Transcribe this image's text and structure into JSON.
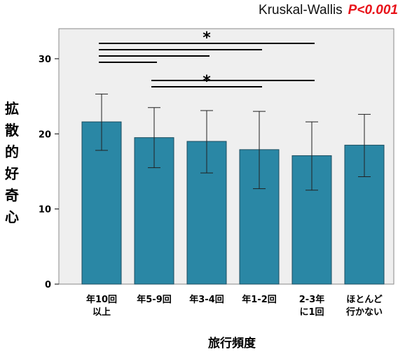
{
  "chart_data": {
    "type": "bar",
    "title": "Kruskal-Wallis",
    "p_value_label": "P<0.001",
    "xlabel": "旅行頻度",
    "ylabel": "拡散的好奇心",
    "categories": [
      [
        "年10回",
        "以上"
      ],
      [
        "年5-9回"
      ],
      [
        "年3-4回"
      ],
      [
        "年1-2回"
      ],
      [
        "2-3年",
        "に1回"
      ],
      [
        "ほとんど",
        "行かない"
      ]
    ],
    "values": [
      21.6,
      19.5,
      19.0,
      17.9,
      17.1,
      18.5
    ],
    "error_upper": [
      25.3,
      23.5,
      23.1,
      23.0,
      21.6,
      22.6
    ],
    "error_lower": [
      17.8,
      15.5,
      14.8,
      12.7,
      12.5,
      14.3
    ],
    "ylim": [
      0,
      34
    ],
    "yticks": [
      0,
      10,
      20,
      30
    ],
    "grid": false,
    "colors": {
      "bar": "#2a87a5",
      "bar_edge": "#1c4e60",
      "plot_bg": "#efefef",
      "p_value": "#e8131a"
    },
    "significance": [
      {
        "from": 0,
        "to": 4,
        "label": "*"
      },
      {
        "from": 0,
        "to": 3,
        "label": ""
      },
      {
        "from": 0,
        "to": 2,
        "label": ""
      },
      {
        "from": 0,
        "to": 1,
        "label": ""
      },
      {
        "from": 1,
        "to": 4,
        "label": ""
      },
      {
        "from": 1,
        "to": 3,
        "label": "*"
      }
    ]
  }
}
